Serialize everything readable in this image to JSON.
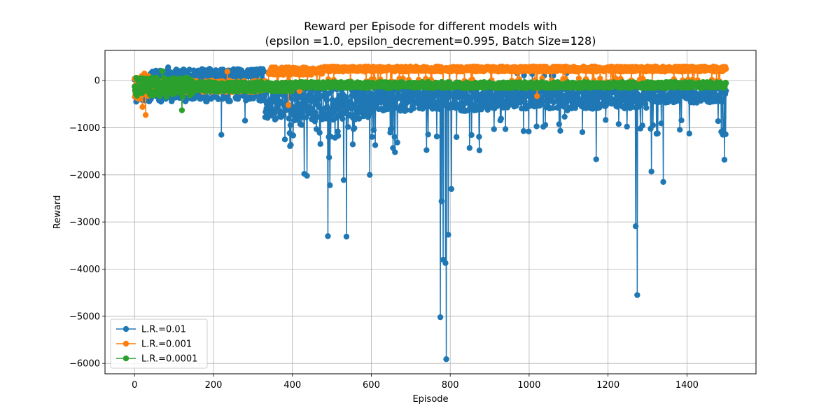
{
  "chart_data": {
    "type": "line",
    "title": "Reward per Episode for different models with",
    "subtitle": "(epsilon =1.0, epsilon_decrement=0.995, Batch Size=128)",
    "xlabel": "Episode",
    "ylabel": "Reward",
    "xlim": [
      -75,
      1575
    ],
    "ylim": [
      -6220,
      640
    ],
    "xticks": [
      0,
      200,
      400,
      600,
      800,
      1000,
      1200,
      1400
    ],
    "xtick_labels": [
      "0",
      "200",
      "400",
      "600",
      "800",
      "1000",
      "1200",
      "1400"
    ],
    "yticks": [
      0,
      -1000,
      -2000,
      -3000,
      -4000,
      -5000,
      -6000
    ],
    "ytick_labels": [
      "0",
      "−1000",
      "−2000",
      "−3000",
      "−4000",
      "−5000",
      "−6000"
    ],
    "grid": true,
    "legend_position": "lower-left",
    "x": {
      "start": 0,
      "end": 1499,
      "step": 1
    },
    "series": [
      {
        "name": "L.R.=0.01",
        "color": "#1f77b4",
        "marker": "circle",
        "approximate": true,
        "notable_points": [
          {
            "x": 0,
            "y": 20
          },
          {
            "x": 85,
            "y": 280
          },
          {
            "x": 220,
            "y": -1150
          },
          {
            "x": 280,
            "y": -850
          },
          {
            "x": 430,
            "y": -1980
          },
          {
            "x": 437,
            "y": -2020
          },
          {
            "x": 490,
            "y": -3300
          },
          {
            "x": 493,
            "y": -1630
          },
          {
            "x": 495,
            "y": -2220
          },
          {
            "x": 530,
            "y": -2110
          },
          {
            "x": 537,
            "y": -3310
          },
          {
            "x": 596,
            "y": -2000
          },
          {
            "x": 775,
            "y": -5020
          },
          {
            "x": 778,
            "y": -2560
          },
          {
            "x": 782,
            "y": -3800
          },
          {
            "x": 788,
            "y": -3870
          },
          {
            "x": 790,
            "y": -5910
          },
          {
            "x": 795,
            "y": -3270
          },
          {
            "x": 803,
            "y": -2300
          },
          {
            "x": 1170,
            "y": -1670
          },
          {
            "x": 1270,
            "y": -3090
          },
          {
            "x": 1274,
            "y": -4550
          },
          {
            "x": 1310,
            "y": -1930
          },
          {
            "x": 1340,
            "y": -2150
          },
          {
            "x": 1495,
            "y": -1680
          }
        ],
        "typical_range": [
          -800,
          250
        ]
      },
      {
        "name": "L.R.=0.001",
        "color": "#ff7f0e",
        "marker": "circle",
        "approximate": true,
        "notable_points": [
          {
            "x": 25,
            "y": 150
          },
          {
            "x": 28,
            "y": -730
          },
          {
            "x": 20,
            "y": -560
          },
          {
            "x": 235,
            "y": 190
          },
          {
            "x": 390,
            "y": -520
          },
          {
            "x": 1020,
            "y": -330
          }
        ],
        "typical_range": [
          50,
          330
        ]
      },
      {
        "name": "L.R.=0.0001",
        "color": "#2ca02c",
        "marker": "circle",
        "approximate": true,
        "notable_points": [
          {
            "x": 70,
            "y": 200
          },
          {
            "x": 120,
            "y": -630
          }
        ],
        "typical_range": [
          -260,
          20
        ]
      }
    ]
  }
}
